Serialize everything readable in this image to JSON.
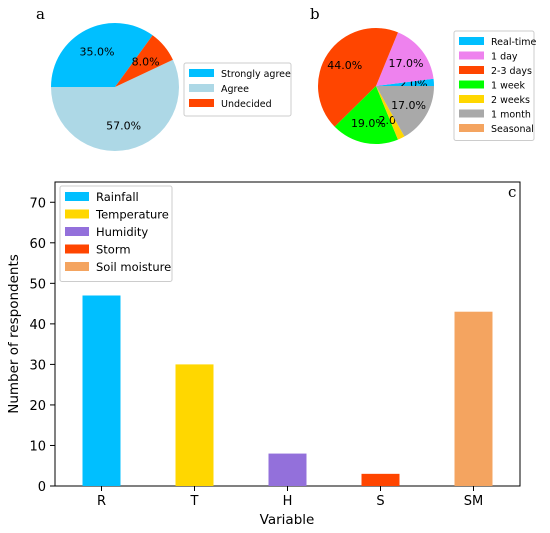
{
  "chart_data": [
    {
      "panel": "a",
      "type": "pie",
      "categories": [
        "Strongly agree",
        "Agree",
        "Undecided"
      ],
      "values": [
        35.0,
        57.0,
        8.0
      ],
      "labels": [
        "35.0%",
        "57.0%",
        "8.0%"
      ],
      "colors": [
        "#00BFFF",
        "#ADD8E6",
        "#FF4500"
      ],
      "legend": "right"
    },
    {
      "panel": "b",
      "type": "pie",
      "categories": [
        "Real-time",
        "1 day",
        "2-3 days",
        "1 week",
        "2 weeks",
        "1 month",
        "Seasonal"
      ],
      "values": [
        2.0,
        17.0,
        44.0,
        19.0,
        2.0,
        17.0,
        0.0
      ],
      "labels": [
        "2.0%",
        "17.0%",
        "44.0%",
        "19.0%",
        "2.0%",
        "17.0%",
        ""
      ],
      "colors": [
        "#00BFFF",
        "#EE82EE",
        "#FF4500",
        "#00FF00",
        "#FFD700",
        "#A9A9A9",
        "#F4A460"
      ],
      "legend": "right"
    },
    {
      "panel": "c",
      "type": "bar",
      "categories": [
        "R",
        "T",
        "H",
        "S",
        "SM"
      ],
      "values": [
        47,
        30,
        8,
        3,
        43
      ],
      "series_names": [
        "Rainfall",
        "Temperature",
        "Humidity",
        "Storm",
        "Soil moisture"
      ],
      "colors": [
        "#00BFFF",
        "#FFD700",
        "#9370DB",
        "#FF4500",
        "#F4A460"
      ],
      "xlabel": "Variable",
      "ylabel": "Number of respondents",
      "ylim": [
        0,
        75
      ],
      "yticks": [
        0,
        10,
        20,
        30,
        40,
        50,
        60,
        70
      ],
      "grid": false,
      "legend": "top-left"
    }
  ]
}
